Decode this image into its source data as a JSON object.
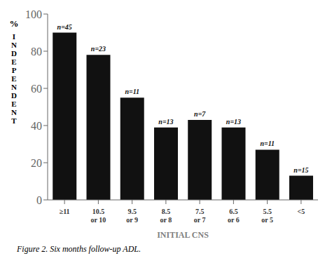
{
  "chart_data": {
    "type": "bar",
    "categories": [
      "≥11",
      "10.5\nor 10",
      "9.5\nor 9",
      "8.5\nor 8",
      "7.5\nor 7",
      "6.5\nor 6",
      "5.5\nor 5",
      "<5"
    ],
    "values": [
      90,
      78,
      55,
      39,
      43,
      39,
      27,
      13
    ],
    "annotations": [
      "n=45",
      "n=23",
      "n=11",
      "n=13",
      "n=7",
      "n=13",
      "n=11",
      "n=15"
    ],
    "color": "#111111",
    "xlabel": "INITIAL CNS",
    "ylabel": [
      "%",
      "I\nN\nD\nE\nP\nE\nN\nD\nE\nN\nT"
    ],
    "caption": "Figure 2.  Six months follow-up ADL.",
    "ylim": [
      0,
      100
    ],
    "yticks": [
      0,
      20,
      40,
      60,
      80,
      100
    ],
    "grid": false
  }
}
